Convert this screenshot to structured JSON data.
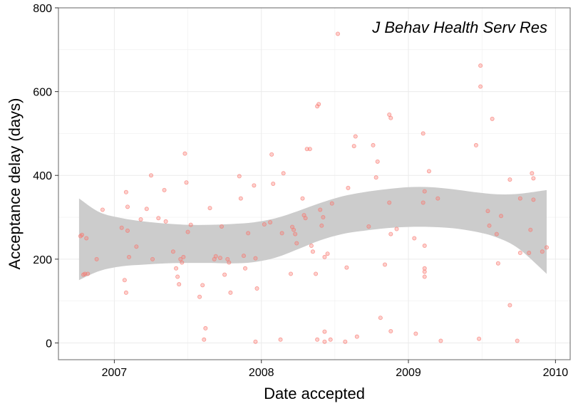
{
  "chart_data": {
    "type": "scatter",
    "title": "",
    "annotation": "J Behav Health Serv Res",
    "xlabel": "Date accepted",
    "ylabel": "Acceptance delay (days)",
    "xlim": [
      2006.62,
      2010.1
    ],
    "ylim": [
      -40,
      800
    ],
    "x_ticks": [
      2007,
      2008,
      2009,
      2010
    ],
    "x_tick_labels": [
      "2007",
      "2008",
      "2009",
      "2010"
    ],
    "y_ticks": [
      0,
      200,
      400,
      600,
      800
    ],
    "y_tick_labels": [
      "0",
      "200",
      "400",
      "600",
      "800"
    ],
    "grid": true,
    "colors": {
      "points": "#f8766d",
      "ribbon": "#cccccc",
      "grid": "#ebebeb",
      "frame": "#7f7f7f"
    },
    "points": [
      [
        2006.77,
        255
      ],
      [
        2006.78,
        258
      ],
      [
        2006.79,
        163
      ],
      [
        2006.8,
        165
      ],
      [
        2006.82,
        165
      ],
      [
        2006.81,
        250
      ],
      [
        2006.88,
        200
      ],
      [
        2006.92,
        318
      ],
      [
        2007.05,
        275
      ],
      [
        2007.07,
        150
      ],
      [
        2007.08,
        120
      ],
      [
        2007.09,
        268
      ],
      [
        2007.08,
        360
      ],
      [
        2007.09,
        325
      ],
      [
        2007.1,
        205
      ],
      [
        2007.15,
        230
      ],
      [
        2007.18,
        295
      ],
      [
        2007.22,
        320
      ],
      [
        2007.25,
        400
      ],
      [
        2007.26,
        200
      ],
      [
        2007.3,
        298
      ],
      [
        2007.34,
        365
      ],
      [
        2007.35,
        290
      ],
      [
        2007.4,
        218
      ],
      [
        2007.42,
        178
      ],
      [
        2007.43,
        158
      ],
      [
        2007.44,
        140
      ],
      [
        2007.45,
        200
      ],
      [
        2007.46,
        192
      ],
      [
        2007.47,
        205
      ],
      [
        2007.48,
        452
      ],
      [
        2007.49,
        383
      ],
      [
        2007.5,
        265
      ],
      [
        2007.52,
        282
      ],
      [
        2007.58,
        110
      ],
      [
        2007.6,
        138
      ],
      [
        2007.61,
        8
      ],
      [
        2007.62,
        35
      ],
      [
        2007.65,
        322
      ],
      [
        2007.68,
        200
      ],
      [
        2007.69,
        207
      ],
      [
        2007.72,
        203
      ],
      [
        2007.73,
        278
      ],
      [
        2007.75,
        163
      ],
      [
        2007.77,
        200
      ],
      [
        2007.78,
        192
      ],
      [
        2007.79,
        120
      ],
      [
        2007.85,
        398
      ],
      [
        2007.86,
        345
      ],
      [
        2007.88,
        208
      ],
      [
        2007.89,
        178
      ],
      [
        2007.91,
        262
      ],
      [
        2007.95,
        376
      ],
      [
        2007.96,
        202
      ],
      [
        2007.97,
        130
      ],
      [
        2007.96,
        3
      ],
      [
        2008.02,
        283
      ],
      [
        2008.06,
        288
      ],
      [
        2008.07,
        450
      ],
      [
        2008.08,
        380
      ],
      [
        2008.13,
        8
      ],
      [
        2008.14,
        262
      ],
      [
        2008.15,
        405
      ],
      [
        2008.2,
        165
      ],
      [
        2008.21,
        277
      ],
      [
        2008.22,
        270
      ],
      [
        2008.23,
        260
      ],
      [
        2008.24,
        238
      ],
      [
        2008.28,
        345
      ],
      [
        2008.29,
        305
      ],
      [
        2008.3,
        298
      ],
      [
        2008.31,
        463
      ],
      [
        2008.33,
        463
      ],
      [
        2008.34,
        232
      ],
      [
        2008.35,
        218
      ],
      [
        2008.37,
        165
      ],
      [
        2008.38,
        8
      ],
      [
        2008.38,
        565
      ],
      [
        2008.39,
        570
      ],
      [
        2008.4,
        318
      ],
      [
        2008.41,
        280
      ],
      [
        2008.42,
        300
      ],
      [
        2008.43,
        205
      ],
      [
        2008.43,
        27
      ],
      [
        2008.43,
        3
      ],
      [
        2008.45,
        213
      ],
      [
        2008.47,
        8
      ],
      [
        2008.48,
        333
      ],
      [
        2008.52,
        738
      ],
      [
        2008.57,
        3
      ],
      [
        2008.58,
        180
      ],
      [
        2008.59,
        370
      ],
      [
        2008.63,
        470
      ],
      [
        2008.64,
        493
      ],
      [
        2008.65,
        15
      ],
      [
        2008.73,
        278
      ],
      [
        2008.76,
        472
      ],
      [
        2008.79,
        433
      ],
      [
        2008.78,
        395
      ],
      [
        2008.81,
        60
      ],
      [
        2008.84,
        187
      ],
      [
        2008.87,
        545
      ],
      [
        2008.88,
        537
      ],
      [
        2008.87,
        335
      ],
      [
        2008.88,
        260
      ],
      [
        2008.88,
        28
      ],
      [
        2008.92,
        272
      ],
      [
        2009.04,
        250
      ],
      [
        2009.05,
        22
      ],
      [
        2009.1,
        500
      ],
      [
        2009.11,
        362
      ],
      [
        2009.1,
        335
      ],
      [
        2009.11,
        232
      ],
      [
        2009.11,
        178
      ],
      [
        2009.11,
        170
      ],
      [
        2009.11,
        158
      ],
      [
        2009.14,
        410
      ],
      [
        2009.2,
        345
      ],
      [
        2009.22,
        5
      ],
      [
        2009.46,
        472
      ],
      [
        2009.48,
        10
      ],
      [
        2009.49,
        662
      ],
      [
        2009.49,
        612
      ],
      [
        2009.54,
        315
      ],
      [
        2009.55,
        280
      ],
      [
        2009.57,
        535
      ],
      [
        2009.6,
        260
      ],
      [
        2009.61,
        190
      ],
      [
        2009.63,
        303
      ],
      [
        2009.69,
        90
      ],
      [
        2009.69,
        390
      ],
      [
        2009.74,
        5
      ],
      [
        2009.76,
        345
      ],
      [
        2009.76,
        215
      ],
      [
        2009.82,
        215
      ],
      [
        2009.83,
        270
      ],
      [
        2009.84,
        405
      ],
      [
        2009.85,
        393
      ],
      [
        2009.85,
        342
      ],
      [
        2009.91,
        218
      ],
      [
        2009.94,
        228
      ]
    ],
    "smooth_x": [
      2006.76,
      2006.9,
      2007.05,
      2007.2,
      2007.35,
      2007.5,
      2007.65,
      2007.8,
      2007.95,
      2008.1,
      2008.25,
      2008.4,
      2008.55,
      2008.7,
      2008.85,
      2009.0,
      2009.15,
      2009.3,
      2009.45,
      2009.6,
      2009.75,
      2009.94
    ],
    "ribbon_upper": [
      345,
      312,
      298,
      290,
      285,
      282,
      282,
      284,
      288,
      298,
      315,
      334,
      350,
      360,
      367,
      372,
      372,
      367,
      360,
      355,
      356,
      365
    ],
    "ribbon_lower": [
      150,
      172,
      183,
      187,
      190,
      191,
      191,
      190,
      193,
      204,
      224,
      245,
      260,
      268,
      274,
      277,
      277,
      274,
      266,
      252,
      225,
      165
    ]
  }
}
